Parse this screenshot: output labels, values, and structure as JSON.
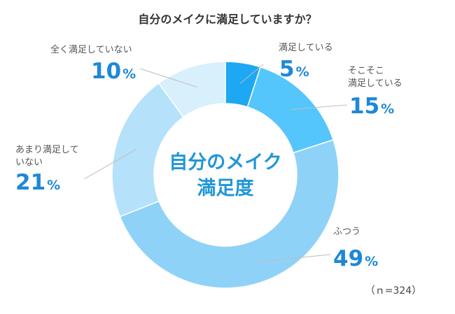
{
  "chart_data": {
    "type": "pie",
    "variant": "donut",
    "title": "自分のメイクに満足していますか？",
    "center_label": [
      "自分のメイク",
      "満足度"
    ],
    "sample_note": "（ｎ=324）",
    "percent_sign": "%",
    "slices": [
      {
        "label": [
          "満足している"
        ],
        "value": 5,
        "color": "#1ea7f2"
      },
      {
        "label": [
          "そこそこ",
          "満足している"
        ],
        "value": 15,
        "color": "#55c6fb"
      },
      {
        "label": [
          "ふつう"
        ],
        "value": 49,
        "color": "#8fd2f8"
      },
      {
        "label": [
          "あまり満足して",
          "いない"
        ],
        "value": 21,
        "color": "#b5e1fa"
      },
      {
        "label": [
          "全く満足していない"
        ],
        "value": 10,
        "color": "#d8effc"
      }
    ]
  }
}
